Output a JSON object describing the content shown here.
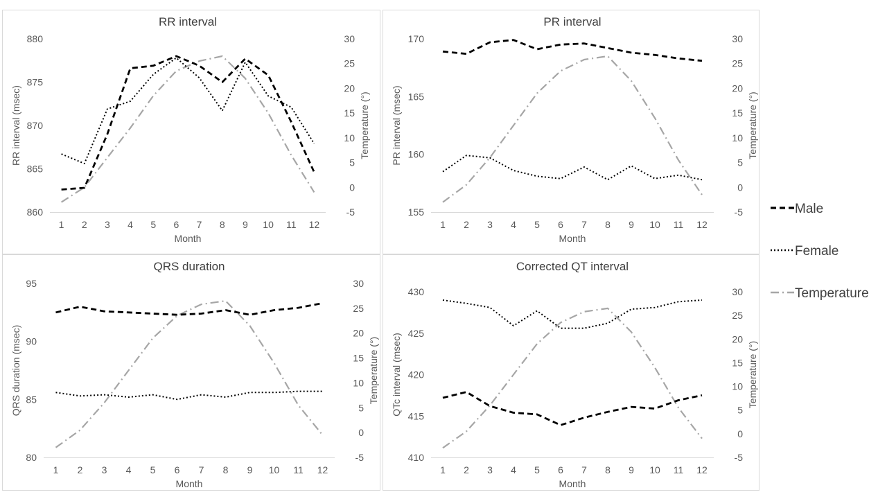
{
  "colors": {
    "male": "#000000",
    "female": "#000000",
    "temperature": "#a6a6a6",
    "border": "#d9d9d9",
    "text": "#595959"
  },
  "legend": {
    "placement": "right",
    "items": [
      {
        "name": "Male",
        "style": "dashed"
      },
      {
        "name": "Female",
        "style": "dotted"
      },
      {
        "name": "Temperature",
        "style": "dash-dot"
      }
    ]
  },
  "chart_data": [
    {
      "type": "line",
      "title": "RR interval",
      "xlabel": "Month",
      "ylabel": "RR interval (msec)",
      "y2label": "Temperature (°)",
      "x": [
        1,
        2,
        3,
        4,
        5,
        6,
        7,
        8,
        9,
        10,
        11,
        12
      ],
      "ylim": [
        860,
        880
      ],
      "yticks": [
        860,
        865,
        870,
        875,
        880
      ],
      "y2lim": [
        -5,
        30
      ],
      "y2ticks": [
        -5,
        0,
        5,
        10,
        15,
        20,
        25,
        30
      ],
      "grid": false,
      "series": [
        {
          "name": "Male",
          "axis": "left",
          "values": [
            862.6,
            862.8,
            869.0,
            876.6,
            876.9,
            878.0,
            876.9,
            875.0,
            877.7,
            875.8,
            870.4,
            864.6
          ]
        },
        {
          "name": "Female",
          "axis": "left",
          "values": [
            866.7,
            865.6,
            871.9,
            872.8,
            875.9,
            877.8,
            875.5,
            871.7,
            877.3,
            873.4,
            872.1,
            867.9
          ]
        },
        {
          "name": "Temperature",
          "axis": "right",
          "values": [
            -3.0,
            0.0,
            6.0,
            12.0,
            18.5,
            23.5,
            25.5,
            26.5,
            22.0,
            15.0,
            6.5,
            -1.0
          ]
        }
      ]
    },
    {
      "type": "line",
      "title": "PR interval",
      "xlabel": "Month",
      "ylabel": "PR interval (msec)",
      "y2label": "Temperature (°)",
      "x": [
        1,
        2,
        3,
        4,
        5,
        6,
        7,
        8,
        9,
        10,
        11,
        12
      ],
      "ylim": [
        155,
        170
      ],
      "yticks": [
        155,
        160,
        165,
        170
      ],
      "y2lim": [
        -5,
        30
      ],
      "y2ticks": [
        -5,
        0,
        5,
        10,
        15,
        20,
        25,
        30
      ],
      "grid": false,
      "series": [
        {
          "name": "Male",
          "axis": "left",
          "values": [
            168.9,
            168.7,
            169.7,
            169.9,
            169.1,
            169.5,
            169.6,
            169.2,
            168.8,
            168.6,
            168.3,
            168.1
          ]
        },
        {
          "name": "Female",
          "axis": "left",
          "values": [
            158.5,
            159.9,
            159.7,
            158.6,
            158.1,
            157.9,
            158.9,
            157.8,
            159.0,
            157.9,
            158.2,
            157.8
          ]
        },
        {
          "name": "Temperature",
          "axis": "right",
          "values": [
            -3.0,
            0.5,
            6.0,
            12.5,
            19.0,
            23.5,
            25.8,
            26.5,
            21.5,
            14.0,
            5.5,
            -1.5
          ]
        }
      ]
    },
    {
      "type": "line",
      "title": "QRS duration",
      "xlabel": "Month",
      "ylabel": "QRS duration (msec)",
      "y2label": "Temperature (°)",
      "x": [
        1,
        2,
        3,
        4,
        5,
        6,
        7,
        8,
        9,
        10,
        11,
        12
      ],
      "ylim": [
        80,
        95
      ],
      "yticks": [
        80,
        85,
        90,
        95
      ],
      "y2lim": [
        -5,
        30
      ],
      "y2ticks": [
        -5,
        0,
        5,
        10,
        15,
        20,
        25,
        30
      ],
      "grid": false,
      "series": [
        {
          "name": "Male",
          "axis": "left",
          "values": [
            92.5,
            93.0,
            92.6,
            92.5,
            92.4,
            92.3,
            92.4,
            92.7,
            92.3,
            92.7,
            92.9,
            93.3
          ]
        },
        {
          "name": "Female",
          "axis": "left",
          "values": [
            85.6,
            85.3,
            85.4,
            85.2,
            85.4,
            85.0,
            85.4,
            85.2,
            85.6,
            85.6,
            85.7,
            85.7
          ]
        },
        {
          "name": "Temperature",
          "axis": "right",
          "values": [
            -3.0,
            0.5,
            6.0,
            12.5,
            19.0,
            23.5,
            25.8,
            26.5,
            21.5,
            14.0,
            5.5,
            -0.5
          ]
        }
      ]
    },
    {
      "type": "line",
      "title": "Corrected QT interval",
      "xlabel": "Month",
      "ylabel": "QTc interval (msec)",
      "y2label": "Temperature (°)",
      "x": [
        1,
        2,
        3,
        4,
        5,
        6,
        7,
        8,
        9,
        10,
        11,
        12
      ],
      "ylim": [
        410,
        430
      ],
      "yticks": [
        410,
        415,
        420,
        425,
        430
      ],
      "y2lim": [
        -5,
        30
      ],
      "y2ticks": [
        -5,
        0,
        5,
        10,
        15,
        20,
        25,
        30
      ],
      "grid": false,
      "series": [
        {
          "name": "Male",
          "axis": "left",
          "values": [
            417.2,
            417.9,
            416.2,
            415.4,
            415.2,
            413.9,
            414.8,
            415.5,
            416.1,
            415.9,
            416.9,
            417.5
          ]
        },
        {
          "name": "Female",
          "axis": "left",
          "values": [
            429.0,
            428.6,
            428.1,
            425.9,
            427.7,
            425.6,
            425.6,
            426.2,
            427.9,
            428.1,
            428.8,
            429.0
          ]
        },
        {
          "name": "Temperature",
          "axis": "right",
          "values": [
            -3.0,
            0.5,
            6.0,
            12.5,
            19.0,
            23.5,
            25.8,
            26.5,
            21.5,
            14.0,
            5.5,
            -1.0
          ]
        }
      ]
    }
  ]
}
